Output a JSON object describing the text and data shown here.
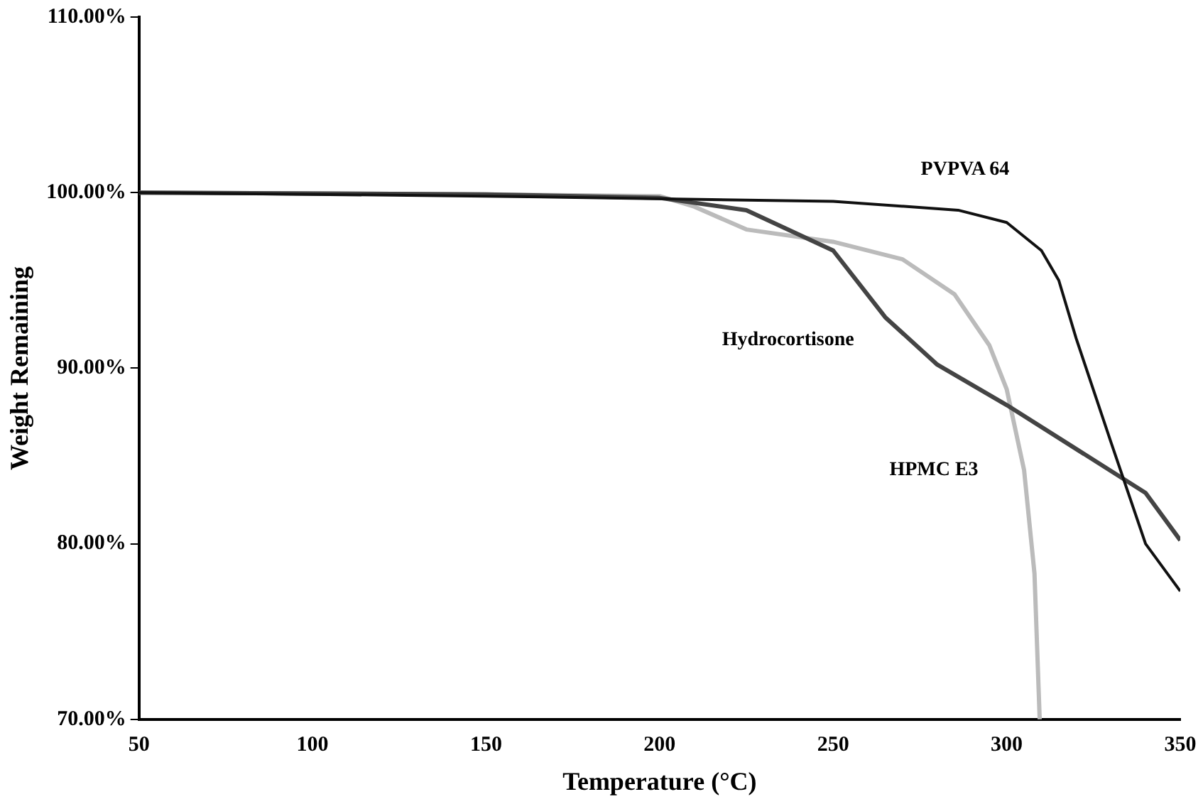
{
  "chart_data": {
    "type": "line",
    "xlabel": "Temperature (°C)",
    "ylabel": "Weight Remaining",
    "xlim": [
      50,
      350
    ],
    "xticks": [
      50,
      100,
      150,
      200,
      250,
      300,
      350
    ],
    "ylim": [
      70,
      110
    ],
    "yticks": [
      {
        "value": 70,
        "label": "70.00%"
      },
      {
        "value": 80,
        "label": "80.00%"
      },
      {
        "value": 90,
        "label": "90.00%"
      },
      {
        "value": 100,
        "label": "100.00%"
      },
      {
        "value": 110,
        "label": "110.00%"
      }
    ],
    "grid": false,
    "legend": false,
    "marker": "none",
    "line_style": "solid",
    "series": [
      {
        "name": "PVPVA 64",
        "color": "#111111",
        "x": [
          50,
          150,
          250,
          286,
          300,
          310,
          315,
          320,
          330,
          340,
          350
        ],
        "values": [
          100,
          99.8,
          99.5,
          99,
          98.3,
          96.7,
          95,
          91.7,
          85.8,
          80,
          77.3
        ]
      },
      {
        "name": "Hydrocortisone",
        "color": "#444444",
        "x": [
          50,
          150,
          200,
          225,
          250,
          265,
          280,
          300,
          320,
          340,
          350
        ],
        "values": [
          100,
          99.9,
          99.7,
          99,
          96.7,
          92.9,
          90.2,
          87.9,
          85.4,
          82.9,
          80.2
        ]
      },
      {
        "name": "HPMC E3",
        "color": "#bbbbbb",
        "x": [
          50,
          150,
          200,
          210,
          225,
          250,
          270,
          285,
          295,
          300,
          305,
          308,
          309.5
        ],
        "values": [
          100,
          99.9,
          99.8,
          99.2,
          97.9,
          97.2,
          96.2,
          94.2,
          91.3,
          88.8,
          84.2,
          78.3,
          70
        ]
      }
    ]
  }
}
